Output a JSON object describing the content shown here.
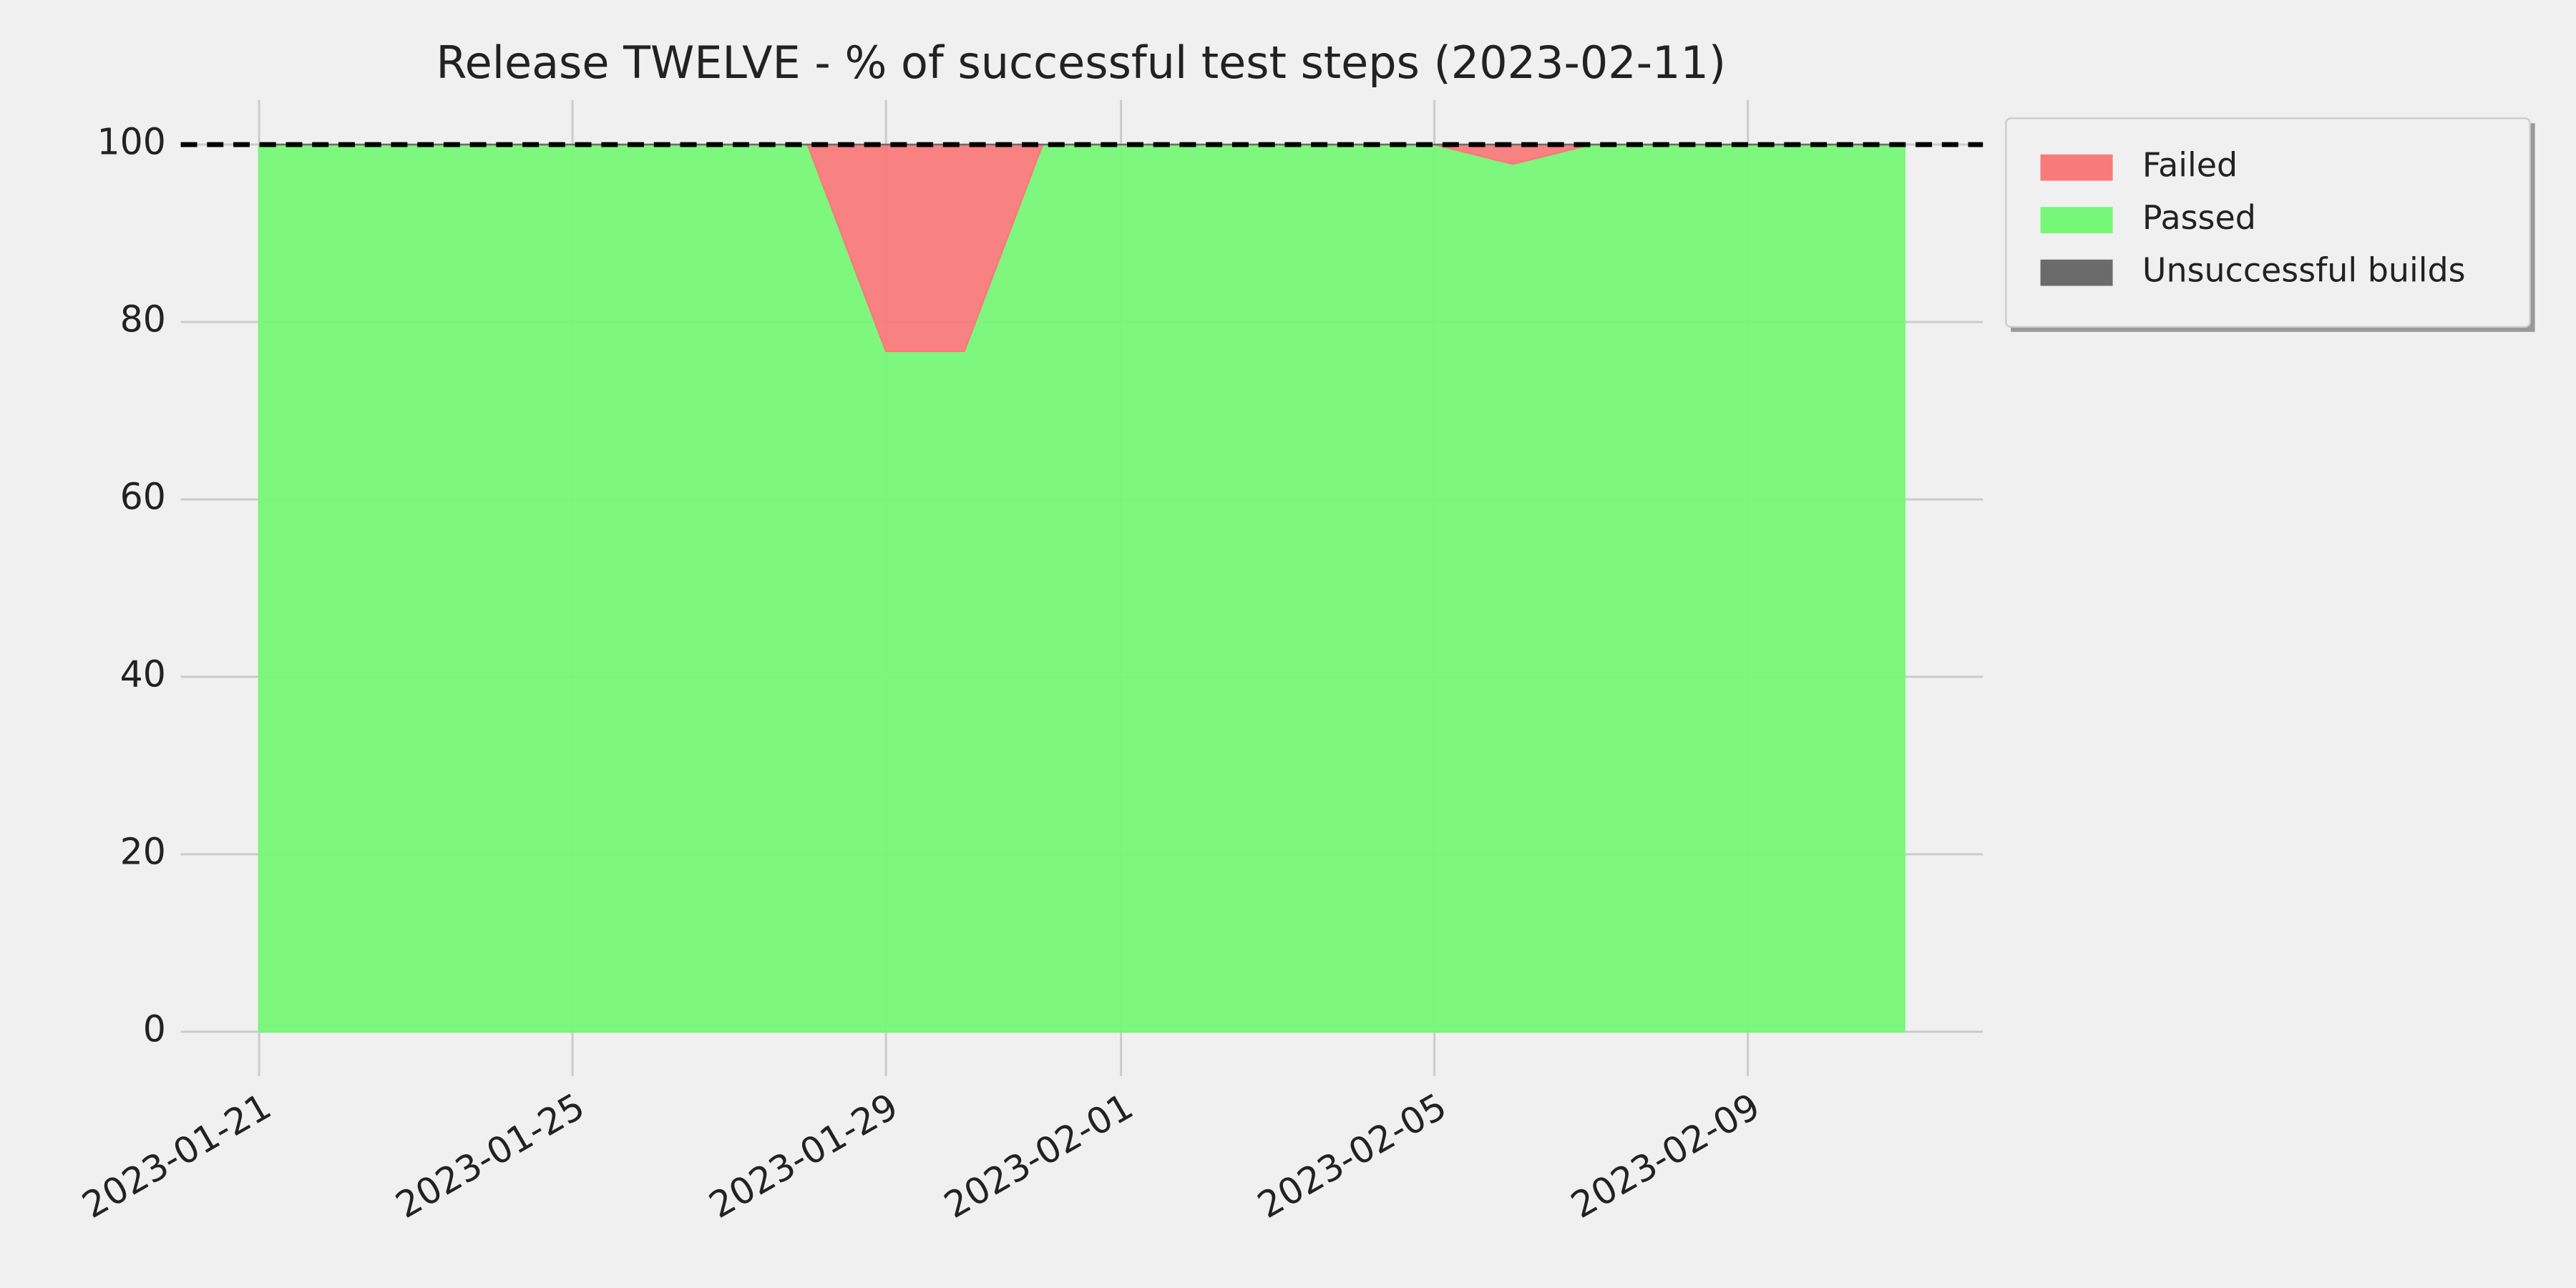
{
  "chart_data": {
    "type": "stacked-area",
    "title": "Release TWELVE - % of successful test steps (2023-02-11)",
    "x": [
      "2023-01-21",
      "2023-01-22",
      "2023-01-23",
      "2023-01-24",
      "2023-01-25",
      "2023-01-26",
      "2023-01-27",
      "2023-01-28",
      "2023-01-29",
      "2023-01-30",
      "2023-01-31",
      "2023-02-01",
      "2023-02-02",
      "2023-02-03",
      "2023-02-04",
      "2023-02-05",
      "2023-02-06",
      "2023-02-07",
      "2023-02-08",
      "2023-02-09",
      "2023-02-10",
      "2023-02-11"
    ],
    "series": [
      {
        "name": "Passed",
        "color": "#77f777",
        "values": [
          100,
          100,
          100,
          100,
          100,
          100,
          100,
          100,
          76.7,
          76.7,
          100,
          100,
          100,
          100,
          100,
          100,
          97.8,
          100,
          100,
          100,
          100,
          100
        ]
      },
      {
        "name": "Failed",
        "color": "#f87a7a",
        "values": [
          0,
          0,
          0,
          0,
          0,
          0,
          0,
          0,
          23.3,
          23.3,
          0,
          0,
          0,
          0,
          0,
          0,
          2.2,
          0,
          0,
          0,
          0,
          0
        ]
      },
      {
        "name": "Unsuccessful builds",
        "color": "#6b6b6b",
        "values": [
          0,
          0,
          0,
          0,
          0,
          0,
          0,
          0,
          0,
          0,
          0,
          0,
          0,
          0,
          0,
          0,
          0,
          0,
          0,
          0,
          0,
          0
        ]
      }
    ],
    "legend_order": [
      "Failed",
      "Passed",
      "Unsuccessful builds"
    ],
    "legend": "outside upper right",
    "hline": 100,
    "xlim": [
      "2023-01-20",
      "2023-02-12"
    ],
    "xticks": [
      "2023-01-21",
      "2023-01-25",
      "2023-01-29",
      "2023-02-01",
      "2023-02-05",
      "2023-02-09"
    ],
    "ylim": [
      -5,
      105
    ],
    "yticks": [
      0,
      20,
      40,
      60,
      80,
      100
    ],
    "grid": true
  }
}
